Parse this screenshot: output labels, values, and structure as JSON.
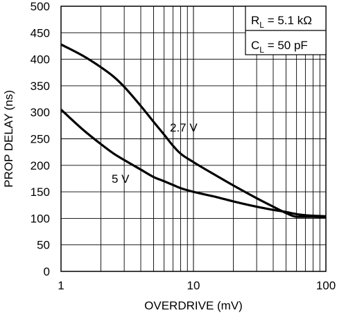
{
  "chart_data": {
    "type": "line",
    "title": "",
    "xlabel": "OVERDRIVE (mV)",
    "ylabel": "PROP DELAY (ns)",
    "xscale": "log",
    "xlim": [
      1,
      100
    ],
    "ylim": [
      0,
      500
    ],
    "grid": true,
    "x_ticks": [
      1,
      10,
      100
    ],
    "x_tick_labels": [
      "1",
      "10",
      "100"
    ],
    "y_ticks": [
      0,
      50,
      100,
      150,
      200,
      250,
      300,
      350,
      400,
      450,
      500
    ],
    "y_tick_labels": [
      "0",
      "50",
      "100",
      "150",
      "200",
      "250",
      "300",
      "350",
      "400",
      "450",
      "500"
    ],
    "conditions": [
      {
        "symbol": "R",
        "subscript": "L",
        "text": " = 5.1 kΩ"
      },
      {
        "symbol": "C",
        "subscript": "L",
        "text": " = 50 pF"
      }
    ],
    "series": [
      {
        "name": "2.7 V",
        "color": "#000000",
        "x": [
          1,
          1.5,
          2,
          2.5,
          3,
          4,
          5,
          6,
          7,
          8,
          10,
          15,
          20,
          30,
          40,
          50,
          60,
          70,
          80,
          100
        ],
        "y": [
          428,
          405,
          385,
          367,
          348,
          312,
          282,
          258,
          237,
          222,
          206,
          180,
          162,
          138,
          122,
          110,
          103,
          103,
          103,
          102
        ]
      },
      {
        "name": "5 V",
        "color": "#000000",
        "x": [
          1,
          1.5,
          2,
          2.5,
          3,
          4,
          5,
          6,
          7,
          8,
          10,
          15,
          20,
          30,
          40,
          50,
          60,
          70,
          80,
          100
        ],
        "y": [
          305,
          265,
          240,
          222,
          210,
          192,
          178,
          170,
          163,
          157,
          150,
          140,
          132,
          122,
          116,
          112,
          108,
          106,
          105,
          104
        ]
      }
    ]
  }
}
